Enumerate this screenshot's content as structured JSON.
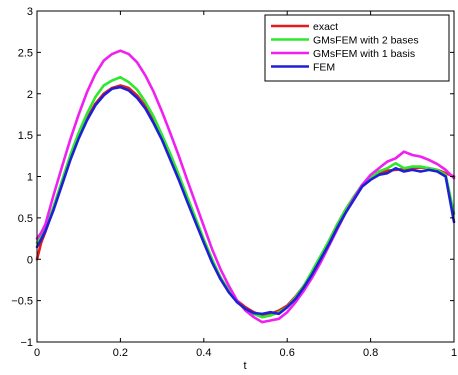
{
  "chart_data": {
    "type": "line",
    "title": "",
    "xlabel": "t",
    "ylabel": "",
    "xlim": [
      0,
      1
    ],
    "ylim": [
      -1,
      3
    ],
    "xticks": [
      0,
      0.2,
      0.4,
      0.6,
      0.8,
      1
    ],
    "yticks": [
      -1,
      -0.5,
      0,
      0.5,
      1,
      1.5,
      2,
      2.5,
      3
    ],
    "xtick_labels": [
      "0",
      "0.2",
      "0.4",
      "0.6",
      "0.8",
      "1"
    ],
    "ytick_labels": [
      "−1",
      "−0.5",
      "0",
      "0.5",
      "1",
      "1.5",
      "2",
      "2.5",
      "3"
    ],
    "grid": false,
    "legend_position": "top-right",
    "series": [
      {
        "name": "exact",
        "color": "#e41a1c",
        "x": [
          0,
          0.01,
          0.02,
          0.04,
          0.06,
          0.08,
          0.1,
          0.12,
          0.14,
          0.16,
          0.18,
          0.2,
          0.22,
          0.24,
          0.26,
          0.28,
          0.3,
          0.32,
          0.34,
          0.36,
          0.38,
          0.4,
          0.42,
          0.44,
          0.46,
          0.48,
          0.5,
          0.52,
          0.54,
          0.56,
          0.58,
          0.6,
          0.62,
          0.64,
          0.66,
          0.68,
          0.7,
          0.72,
          0.74,
          0.76,
          0.78,
          0.8,
          0.82,
          0.84,
          0.86,
          0.88,
          0.9,
          0.92,
          0.94,
          0.96,
          0.98,
          1.0
        ],
        "y": [
          0.0,
          0.2,
          0.33,
          0.62,
          0.92,
          1.22,
          1.48,
          1.7,
          1.88,
          2.0,
          2.07,
          2.1,
          2.07,
          1.98,
          1.85,
          1.68,
          1.48,
          1.25,
          1.0,
          0.74,
          0.48,
          0.22,
          -0.02,
          -0.22,
          -0.38,
          -0.5,
          -0.58,
          -0.64,
          -0.68,
          -0.66,
          -0.62,
          -0.56,
          -0.45,
          -0.32,
          -0.16,
          0.02,
          0.22,
          0.42,
          0.6,
          0.75,
          0.9,
          0.98,
          1.04,
          1.07,
          1.08,
          1.09,
          1.1,
          1.11,
          1.1,
          1.08,
          1.04,
          1.0
        ]
      },
      {
        "name": "GMsFEM with 2 bases",
        "color": "#2ee82e",
        "x": [
          0,
          0.01,
          0.02,
          0.04,
          0.06,
          0.08,
          0.1,
          0.12,
          0.14,
          0.16,
          0.18,
          0.2,
          0.22,
          0.24,
          0.26,
          0.28,
          0.3,
          0.32,
          0.34,
          0.36,
          0.38,
          0.4,
          0.42,
          0.44,
          0.46,
          0.48,
          0.5,
          0.52,
          0.54,
          0.56,
          0.58,
          0.6,
          0.62,
          0.64,
          0.66,
          0.68,
          0.7,
          0.72,
          0.74,
          0.76,
          0.78,
          0.8,
          0.82,
          0.84,
          0.86,
          0.88,
          0.9,
          0.92,
          0.94,
          0.96,
          0.98,
          1.0
        ],
        "y": [
          0.2,
          0.28,
          0.36,
          0.64,
          0.95,
          1.26,
          1.53,
          1.76,
          1.96,
          2.1,
          2.16,
          2.2,
          2.14,
          2.05,
          1.9,
          1.72,
          1.5,
          1.27,
          1.02,
          0.76,
          0.5,
          0.24,
          0.0,
          -0.22,
          -0.38,
          -0.52,
          -0.6,
          -0.66,
          -0.7,
          -0.68,
          -0.64,
          -0.58,
          -0.46,
          -0.32,
          -0.14,
          0.04,
          0.22,
          0.42,
          0.6,
          0.76,
          0.9,
          0.98,
          1.06,
          1.1,
          1.16,
          1.1,
          1.12,
          1.12,
          1.1,
          1.08,
          1.02,
          0.55
        ]
      },
      {
        "name": "GMsFEM with 1 basis",
        "color": "#f020f0",
        "x": [
          0,
          0.01,
          0.02,
          0.04,
          0.06,
          0.08,
          0.1,
          0.12,
          0.14,
          0.16,
          0.18,
          0.2,
          0.22,
          0.24,
          0.26,
          0.28,
          0.3,
          0.32,
          0.34,
          0.36,
          0.38,
          0.4,
          0.42,
          0.44,
          0.46,
          0.48,
          0.5,
          0.52,
          0.54,
          0.56,
          0.58,
          0.6,
          0.62,
          0.64,
          0.66,
          0.68,
          0.7,
          0.72,
          0.74,
          0.76,
          0.78,
          0.8,
          0.82,
          0.84,
          0.86,
          0.88,
          0.9,
          0.92,
          0.94,
          0.96,
          0.98,
          1.0
        ],
        "y": [
          0.25,
          0.32,
          0.42,
          0.78,
          1.12,
          1.45,
          1.75,
          2.02,
          2.24,
          2.4,
          2.48,
          2.52,
          2.48,
          2.38,
          2.22,
          2.02,
          1.78,
          1.52,
          1.25,
          0.96,
          0.68,
          0.4,
          0.12,
          -0.12,
          -0.32,
          -0.5,
          -0.62,
          -0.7,
          -0.76,
          -0.74,
          -0.72,
          -0.64,
          -0.52,
          -0.38,
          -0.22,
          -0.04,
          0.16,
          0.36,
          0.56,
          0.74,
          0.9,
          1.02,
          1.1,
          1.18,
          1.22,
          1.3,
          1.26,
          1.24,
          1.2,
          1.15,
          1.08,
          0.98
        ]
      },
      {
        "name": "FEM",
        "color": "#1f1fd6",
        "x": [
          0,
          0.01,
          0.02,
          0.04,
          0.06,
          0.08,
          0.1,
          0.12,
          0.14,
          0.16,
          0.18,
          0.2,
          0.22,
          0.24,
          0.26,
          0.28,
          0.3,
          0.32,
          0.34,
          0.36,
          0.38,
          0.4,
          0.42,
          0.44,
          0.46,
          0.48,
          0.5,
          0.52,
          0.54,
          0.56,
          0.58,
          0.6,
          0.62,
          0.64,
          0.66,
          0.68,
          0.7,
          0.72,
          0.74,
          0.76,
          0.78,
          0.8,
          0.82,
          0.84,
          0.86,
          0.88,
          0.9,
          0.92,
          0.94,
          0.96,
          0.98,
          1.0
        ],
        "y": [
          0.15,
          0.24,
          0.34,
          0.6,
          0.9,
          1.2,
          1.46,
          1.68,
          1.86,
          1.98,
          2.06,
          2.08,
          2.04,
          1.95,
          1.82,
          1.64,
          1.44,
          1.2,
          0.96,
          0.7,
          0.45,
          0.2,
          -0.04,
          -0.24,
          -0.4,
          -0.52,
          -0.6,
          -0.65,
          -0.66,
          -0.64,
          -0.66,
          -0.58,
          -0.48,
          -0.34,
          -0.18,
          0.0,
          0.18,
          0.38,
          0.56,
          0.72,
          0.88,
          0.96,
          1.02,
          1.04,
          1.1,
          1.06,
          1.08,
          1.06,
          1.08,
          1.06,
          1.0,
          0.45
        ]
      }
    ]
  }
}
